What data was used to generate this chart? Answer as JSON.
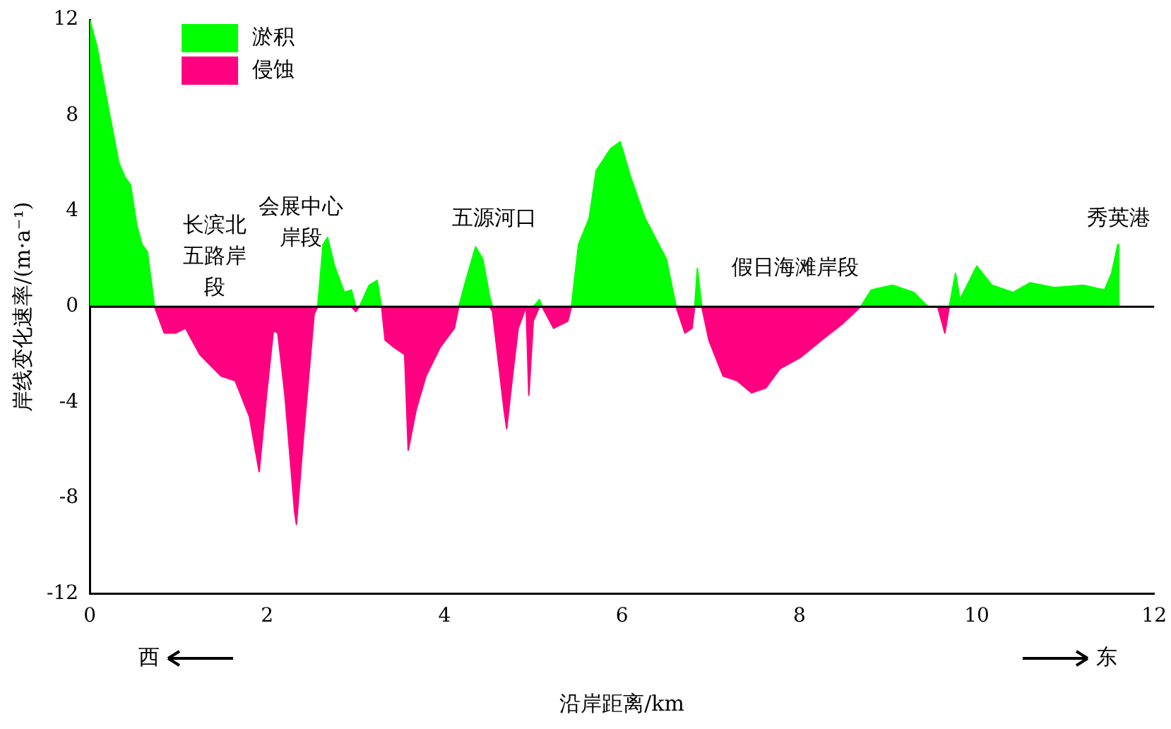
{
  "chart_data": {
    "type": "area",
    "xlabel": "沿岸距离/km",
    "ylabel": "岸线变化速率/(m·a⁻¹)",
    "x": [
      0,
      0.08,
      0.21,
      0.33,
      0.4,
      0.46,
      0.53,
      0.59,
      0.65,
      0.73,
      0.84,
      0.97,
      1.08,
      1.24,
      1.48,
      1.64,
      1.8,
      1.91,
      1.99,
      2.07,
      2.12,
      2.2,
      2.31,
      2.33,
      2.41,
      2.53,
      2.57,
      2.63,
      2.68,
      2.76,
      2.87,
      2.95,
      3.0,
      3.04,
      3.15,
      3.24,
      3.28,
      3.29,
      3.33,
      3.43,
      3.55,
      3.59,
      3.68,
      3.79,
      3.95,
      4.11,
      4.16,
      4.24,
      4.35,
      4.43,
      4.51,
      4.54,
      4.67,
      4.7,
      4.76,
      4.83,
      4.92,
      4.95,
      5.0,
      5.07,
      5.1,
      5.23,
      5.39,
      5.43,
      5.51,
      5.63,
      5.71,
      5.87,
      5.98,
      6.1,
      6.26,
      6.5,
      6.61,
      6.71,
      6.79,
      6.82,
      6.85,
      6.9,
      6.98,
      7.14,
      7.3,
      7.46,
      7.62,
      7.78,
      8.02,
      8.25,
      8.49,
      8.69,
      8.81,
      9.05,
      9.29,
      9.45,
      9.56,
      9.64,
      9.69,
      9.76,
      9.81,
      10.0,
      10.17,
      10.41,
      10.6,
      10.88,
      11.2,
      11.44,
      11.52,
      11.59,
      11.6
    ],
    "series": [
      {
        "name": "淤积",
        "color": "#00ff00",
        "values": [
          12,
          10.9,
          8.3,
          6.0,
          5.4,
          5.1,
          3.4,
          2.6,
          2.3,
          0,
          0,
          0,
          0,
          0,
          0,
          0,
          0,
          0,
          0,
          0,
          0,
          0,
          0,
          0,
          0,
          0,
          0,
          2.6,
          2.9,
          1.7,
          0.6,
          0.7,
          0,
          0,
          0.9,
          1.1,
          0.2,
          0,
          0,
          0,
          0,
          0,
          0,
          0,
          0,
          0,
          0,
          1.1,
          2.5,
          2.0,
          0.4,
          0,
          0,
          0,
          0,
          0,
          0,
          0,
          0,
          0.3,
          0,
          0,
          0,
          0,
          2.6,
          3.7,
          5.7,
          6.6,
          6.9,
          5.4,
          3.7,
          2.0,
          0,
          0,
          0,
          0,
          1.6,
          0,
          0,
          0,
          0,
          0,
          0,
          0,
          0,
          0,
          0,
          0,
          0.7,
          0.9,
          0.6,
          0,
          0,
          0,
          0,
          1.4,
          0.3,
          1.7,
          0.9,
          0.6,
          1.0,
          0.8,
          0.9,
          0.7,
          1.4,
          2.6,
          0
        ]
      },
      {
        "name": "侵蚀",
        "color": "#ff0080",
        "values": [
          0,
          0,
          0,
          0,
          0,
          0,
          0,
          0,
          0,
          0,
          -1.1,
          -1.1,
          -0.9,
          -2.0,
          -2.9,
          -3.1,
          -4.6,
          -6.9,
          -3.8,
          -1.0,
          -1.1,
          -3.7,
          -8.6,
          -9.1,
          -5.4,
          -0.3,
          0,
          0,
          0,
          0,
          0,
          0,
          -0.2,
          0,
          0,
          0,
          0,
          0,
          -1.4,
          -1.7,
          -2.0,
          -6.0,
          -4.3,
          -2.9,
          -1.7,
          -0.9,
          0,
          0,
          0,
          0,
          0,
          -0.2,
          -4.3,
          -5.1,
          -3.1,
          -0.9,
          0,
          -3.7,
          -0.6,
          0,
          0,
          -0.9,
          -0.6,
          0,
          0,
          0,
          0,
          0,
          0,
          0,
          0,
          0,
          0,
          -1.1,
          -0.9,
          0,
          0,
          0,
          -1.4,
          -2.9,
          -3.1,
          -3.6,
          -3.4,
          -2.6,
          -2.1,
          -1.4,
          -0.7,
          0,
          0,
          0,
          0,
          0,
          0,
          -1.1,
          0,
          0,
          0,
          0,
          0,
          0,
          0,
          0,
          0,
          0,
          0,
          0,
          0
        ]
      }
    ],
    "xlim": [
      0,
      12
    ],
    "xticks": [
      0,
      2,
      4,
      6,
      8,
      10,
      12
    ],
    "ylim": [
      -12,
      12
    ],
    "yticks": [
      -12,
      -8,
      -4,
      0,
      4,
      8,
      12
    ],
    "ref_lines": [
      {
        "axis": "y",
        "value": 0,
        "color": "#000000"
      }
    ],
    "legend": "top left",
    "grid": false,
    "annotations": [
      "长滨北五路岸段",
      "会展中心岸段",
      "五源河口",
      "假日海滩岸段",
      "秀英港",
      "西",
      "东"
    ]
  }
}
